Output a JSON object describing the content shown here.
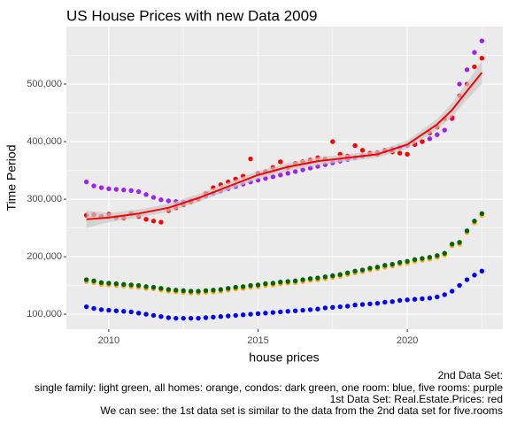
{
  "chart_data": {
    "type": "scatter",
    "title": "US House Prices with new Data 2009",
    "x_label": "house prices",
    "y_label": "Time Period",
    "caption": [
      "2nd Data Set:",
      "single family: light green, all homes: orange, condos: dark green, one room: blue, five rooms: purple",
      "1st Data Set: Real.Estate.Prices: red",
      "We can see: the 1st data set is similar to the data from the 2nd data set for five.rooms"
    ],
    "xlim": [
      2008.58,
      2023.2
    ],
    "ylim": [
      74000,
      600000
    ],
    "xticks": [
      2010,
      2015,
      2020
    ],
    "yticks": [
      {
        "value": 100000,
        "label": "100,000"
      },
      {
        "value": 200000,
        "label": "200,000"
      },
      {
        "value": 300000,
        "label": "300,000"
      },
      {
        "value": 400000,
        "label": "400,000"
      },
      {
        "value": 500000,
        "label": "500,000"
      }
    ],
    "grid": true,
    "x": [
      2009.25,
      2009.5,
      2009.75,
      2010,
      2010.25,
      2010.5,
      2010.75,
      2011,
      2011.25,
      2011.5,
      2011.75,
      2012,
      2012.25,
      2012.5,
      2012.75,
      2013,
      2013.25,
      2013.5,
      2013.75,
      2014,
      2014.25,
      2014.5,
      2014.75,
      2015,
      2015.25,
      2015.5,
      2015.75,
      2016,
      2016.25,
      2016.5,
      2016.75,
      2017,
      2017.25,
      2017.5,
      2017.75,
      2018,
      2018.25,
      2018.5,
      2018.75,
      2019,
      2019.25,
      2019.5,
      2019.75,
      2020,
      2020.25,
      2020.5,
      2020.75,
      2021,
      2021.25,
      2021.5,
      2021.75,
      2022,
      2022.25,
      2022.5
    ],
    "series": [
      {
        "color": "#0000ff",
        "values": [
          113000,
          110000,
          108000,
          107000,
          106000,
          105000,
          104000,
          102000,
          100000,
          98000,
          96000,
          94000,
          93000,
          93000,
          93000,
          93000,
          94000,
          95000,
          96000,
          97000,
          98000,
          99000,
          100000,
          101000,
          102000,
          103000,
          104000,
          105000,
          106000,
          107000,
          108000,
          109000,
          111000,
          112000,
          113000,
          114000,
          116000,
          117000,
          118000,
          119000,
          121000,
          122000,
          124000,
          125000,
          126000,
          127000,
          128000,
          130000,
          134000,
          140000,
          150000,
          160000,
          168000,
          175000
        ]
      },
      {
        "color": "#ffa500",
        "values": [
          157000,
          155000,
          152000,
          151000,
          150000,
          149000,
          148000,
          147000,
          145000,
          144000,
          142000,
          140000,
          139000,
          138000,
          137000,
          137000,
          138000,
          139000,
          140000,
          142000,
          144000,
          145000,
          147000,
          148000,
          150000,
          151000,
          153000,
          154000,
          155000,
          157000,
          159000,
          160000,
          162000,
          164000,
          166000,
          169000,
          172000,
          174000,
          177000,
          179000,
          182000,
          184000,
          187000,
          189000,
          192000,
          194000,
          196000,
          199000,
          203000,
          219000,
          222000,
          242000,
          259000,
          272000
        ]
      },
      {
        "color": "#006400",
        "values": [
          160000,
          158000,
          155000,
          154000,
          153000,
          152000,
          151000,
          150000,
          148000,
          147000,
          145000,
          143000,
          142000,
          141000,
          140000,
          140000,
          141000,
          142000,
          143000,
          145000,
          147000,
          148000,
          150000,
          151000,
          153000,
          154000,
          156000,
          157000,
          158000,
          160000,
          162000,
          163000,
          165000,
          167000,
          169000,
          172000,
          175000,
          177000,
          180000,
          182000,
          185000,
          187000,
          190000,
          192000,
          195000,
          197000,
          199000,
          202000,
          206000,
          222000,
          225000,
          245000,
          262000,
          275000
        ]
      },
      {
        "color": "#a020f0",
        "values": [
          330000,
          323000,
          320000,
          318000,
          317000,
          316000,
          315000,
          313000,
          308000,
          303000,
          299000,
          297000,
          296000,
          295000,
          297000,
          300000,
          305000,
          310000,
          314000,
          318000,
          322000,
          326000,
          330000,
          333000,
          336000,
          339000,
          342000,
          345000,
          348000,
          351000,
          354000,
          357000,
          360000,
          363000,
          366000,
          369000,
          372000,
          375000,
          378000,
          381000,
          384000,
          387000,
          390000,
          393000,
          396000,
          400000,
          405000,
          412000,
          420000,
          440000,
          500000,
          525000,
          555000,
          575000
        ]
      },
      {
        "color": "#ff0000",
        "values": [
          272000,
          273000,
          270000,
          274000,
          268000,
          267000,
          275000,
          270000,
          265000,
          262000,
          260000,
          280000,
          285000,
          290000,
          295000,
          300000,
          310000,
          320000,
          325000,
          330000,
          335000,
          340000,
          370000,
          345000,
          348000,
          355000,
          365000,
          355000,
          362000,
          365000,
          368000,
          372000,
          370000,
          400000,
          378000,
          375000,
          393000,
          385000,
          380000,
          378000,
          385000,
          382000,
          380000,
          378000,
          395000,
          400000,
          415000,
          425000,
          440000,
          442000,
          480000,
          500000,
          530000,
          545000
        ]
      }
    ],
    "smooth": {
      "color": "#ff0000",
      "band_color": "#c8c8c8",
      "x": [
        2009.25,
        2010,
        2011,
        2012,
        2013,
        2014,
        2015,
        2016,
        2017,
        2018,
        2019,
        2020,
        2021,
        2021.5,
        2022,
        2022.5
      ],
      "values": [
        265000,
        268000,
        275000,
        285000,
        302000,
        322000,
        342000,
        356000,
        366000,
        372000,
        378000,
        395000,
        430000,
        455000,
        488000,
        520000
      ],
      "lower": [
        250000,
        260000,
        268000,
        278000,
        295000,
        315000,
        335000,
        349000,
        359000,
        366000,
        372000,
        388000,
        421000,
        443000,
        473000,
        500000
      ],
      "upper": [
        280000,
        276000,
        282000,
        292000,
        309000,
        329000,
        349000,
        363000,
        373000,
        378000,
        384000,
        402000,
        439000,
        467000,
        503000,
        540000
      ]
    }
  }
}
